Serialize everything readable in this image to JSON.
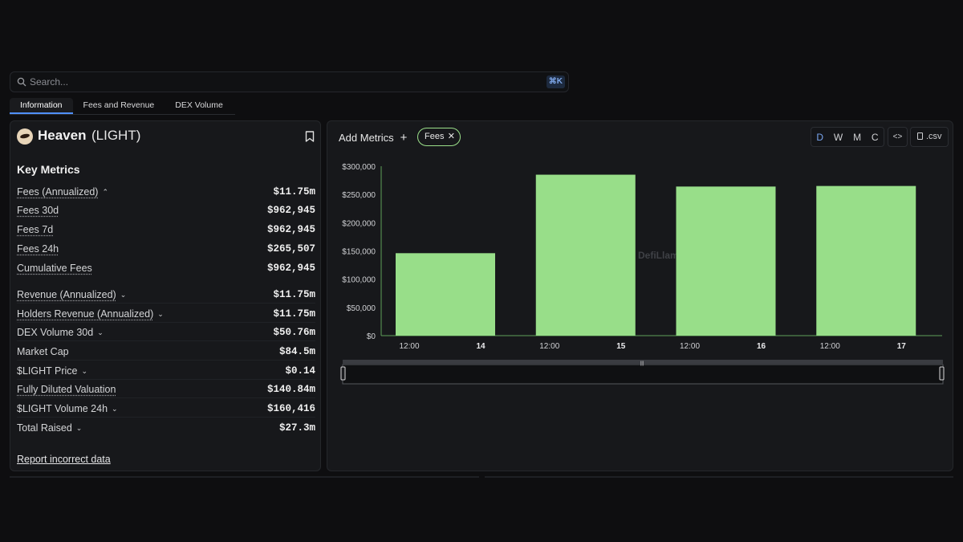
{
  "search": {
    "placeholder": "Search...",
    "shortcut": "⌘K"
  },
  "tabs": [
    {
      "label": "Information"
    },
    {
      "label": "Fees and Revenue"
    },
    {
      "label": "DEX Volume"
    }
  ],
  "token": {
    "name": "Heaven",
    "symbol": "(LIGHT)"
  },
  "key_metrics": {
    "title": "Key Metrics",
    "rows": [
      {
        "label": "Fees (Annualized)",
        "value": "$11.75m",
        "chevron": "⌃"
      },
      {
        "label": "Fees 30d",
        "value": "$962,945"
      },
      {
        "label": "Fees 7d",
        "value": "$962,945"
      },
      {
        "label": "Fees 24h",
        "value": "$265,507"
      },
      {
        "label": "Cumulative Fees",
        "value": "$962,945"
      },
      {
        "label": "Revenue (Annualized)",
        "value": "$11.75m",
        "chevron": "⌄"
      },
      {
        "label": "Holders Revenue (Annualized)",
        "value": "$11.75m",
        "chevron": "⌄"
      },
      {
        "label": "DEX Volume 30d",
        "value": "$50.76m",
        "chevron": "⌄"
      },
      {
        "label": "Market Cap",
        "value": "$84.5m"
      },
      {
        "label": "$LIGHT Price",
        "value": "$0.14",
        "chevron": "⌄"
      },
      {
        "label": "Fully Diluted Valuation",
        "value": "$140.84m"
      },
      {
        "label": "$LIGHT Volume 24h",
        "value": "$160,416",
        "chevron": "⌄"
      },
      {
        "label": "Total Raised",
        "value": "$27.3m",
        "chevron": "⌄"
      }
    ],
    "report_link": "Report incorrect data"
  },
  "chart_controls": {
    "add_metrics": "Add Metrics",
    "plus": "+",
    "chip_label": "Fees",
    "chip_close": "✕",
    "granularity": [
      "D",
      "W",
      "M",
      "C"
    ],
    "selected_granularity": "D",
    "embed": "<>",
    "csv": ".csv"
  },
  "chart_data": {
    "type": "bar",
    "categories": [
      "14",
      "15",
      "16",
      "17"
    ],
    "sub_ticks": [
      "12:00",
      "12:00",
      "12:00",
      "12:00"
    ],
    "values": [
      146000,
      285000,
      264000,
      265000
    ],
    "yticks": [
      "$0",
      "$50,000",
      "$100,000",
      "$150,000",
      "$200,000",
      "$250,000",
      "$300,000"
    ],
    "ylim": [
      0,
      300000
    ],
    "watermark": "DefiLlama",
    "bar_color": "#98de89",
    "series": [
      {
        "name": "Fees",
        "values": [
          146000,
          285000,
          264000,
          265000
        ]
      }
    ]
  }
}
